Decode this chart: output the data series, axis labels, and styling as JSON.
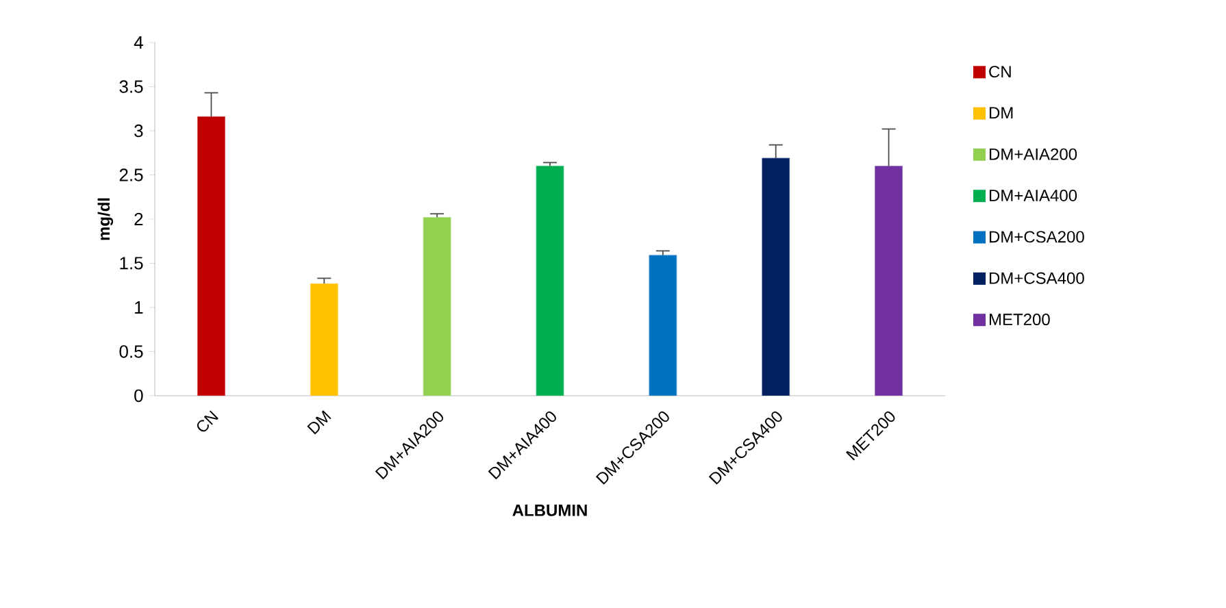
{
  "chart_data": {
    "type": "bar",
    "xlabel": "ALBUMIN",
    "ylabel": "mg/dl",
    "categories": [
      "CN",
      "DM",
      "DM+AIA200",
      "DM+AIA400",
      "DM+CSA200",
      "DM+CSA400",
      "MET200"
    ],
    "series": [
      {
        "name": "CN",
        "color": "#c00000",
        "values": [
          3.16,
          null,
          null,
          null,
          null,
          null,
          null
        ],
        "errors": [
          0.27,
          null,
          null,
          null,
          null,
          null,
          null
        ]
      },
      {
        "name": "DM",
        "color": "#ffc000",
        "values": [
          null,
          1.27,
          null,
          null,
          null,
          null,
          null
        ],
        "errors": [
          null,
          0.06,
          null,
          null,
          null,
          null,
          null
        ]
      },
      {
        "name": "DM+AIA200",
        "color": "#92d050",
        "values": [
          null,
          null,
          2.02,
          null,
          null,
          null,
          null
        ],
        "errors": [
          null,
          null,
          0.04,
          null,
          null,
          null,
          null
        ]
      },
      {
        "name": "DM+AIA400",
        "color": "#00b050",
        "values": [
          null,
          null,
          null,
          2.6,
          null,
          null,
          null
        ],
        "errors": [
          null,
          null,
          null,
          0.04,
          null,
          null,
          null
        ]
      },
      {
        "name": "DM+CSA200",
        "color": "#0070c0",
        "values": [
          null,
          null,
          null,
          null,
          1.59,
          null,
          null
        ],
        "errors": [
          null,
          null,
          null,
          null,
          0.05,
          null,
          null
        ]
      },
      {
        "name": "DM+CSA400",
        "color": "#002060",
        "values": [
          null,
          null,
          null,
          null,
          null,
          2.69,
          null
        ],
        "errors": [
          null,
          null,
          null,
          null,
          null,
          0.15,
          null
        ]
      },
      {
        "name": "MET200",
        "color": "#7030a0",
        "values": [
          null,
          null,
          null,
          null,
          null,
          null,
          2.6
        ],
        "errors": [
          null,
          null,
          null,
          null,
          null,
          null,
          0.42
        ]
      }
    ],
    "ylim": [
      0,
      4
    ],
    "yticks": [
      0,
      0.5,
      1,
      1.5,
      2,
      2.5,
      3,
      3.5,
      4
    ],
    "legend": "right",
    "grid": false
  }
}
